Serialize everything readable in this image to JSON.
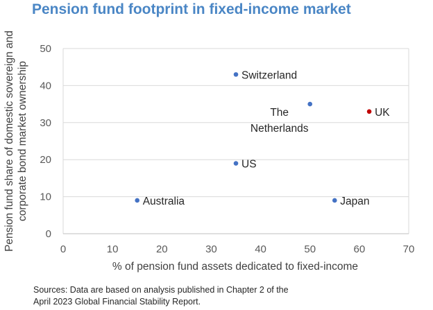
{
  "title": "Pension fund footprint in fixed-income market",
  "chart_data": {
    "type": "scatter",
    "title": "Pension fund footprint in fixed-income market",
    "xlabel": "% of pension fund assets dedicated to fixed-income",
    "ylabel_lines": [
      "Pension fund share of domestic sovereign and",
      "corporate bond market ownership"
    ],
    "xlim": [
      0,
      70
    ],
    "ylim": [
      0,
      50
    ],
    "xticks": [
      0,
      10,
      20,
      30,
      40,
      50,
      60,
      70
    ],
    "yticks": [
      0,
      10,
      20,
      30,
      40,
      50
    ],
    "grid": "horizontal",
    "points": [
      {
        "label": "Switzerland",
        "x": 35,
        "y": 43,
        "color": "#4472c4"
      },
      {
        "label": "The Netherlands",
        "label_lines": [
          "The",
          "Netherlands"
        ],
        "x": 50,
        "y": 35,
        "color": "#4472c4"
      },
      {
        "label": "UK",
        "x": 62,
        "y": 33,
        "color": "#c00000"
      },
      {
        "label": "US",
        "x": 35,
        "y": 19,
        "color": "#4472c4"
      },
      {
        "label": "Australia",
        "x": 15,
        "y": 9,
        "color": "#4472c4"
      },
      {
        "label": "Japan",
        "x": 55,
        "y": 9,
        "color": "#4472c4"
      }
    ]
  },
  "source_lines": [
    "Sources: Data are based on analysis published in Chapter 2 of the",
    "April 2023 Global Financial Stability Report."
  ]
}
